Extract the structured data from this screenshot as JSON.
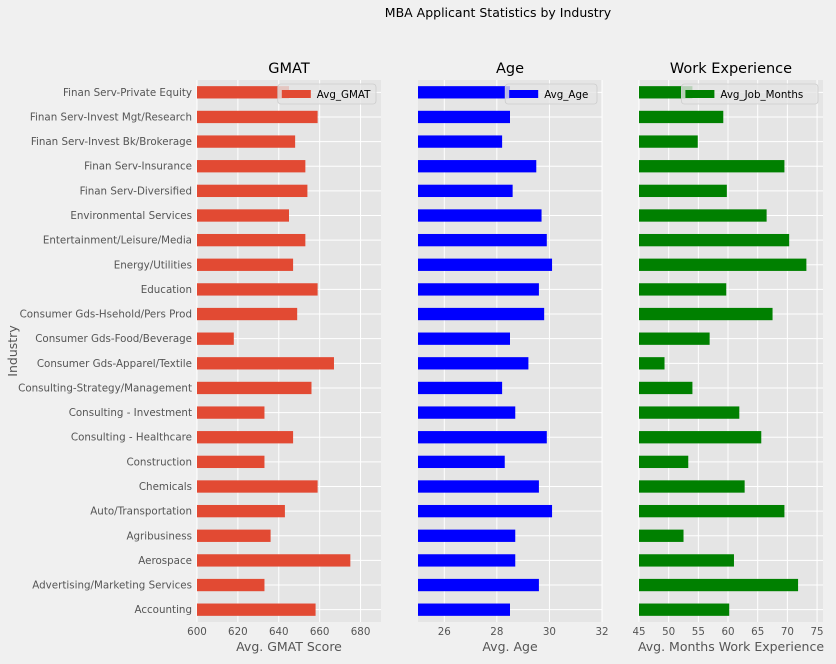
{
  "figure": {
    "suptitle": "MBA Applicant Statistics by Industry",
    "shared_ylabel": "Industry",
    "background": "#f0f0f0",
    "panel_background": "#e5e5e5",
    "grid_color": "#ffffff"
  },
  "categories": [
    "Accounting",
    "Advertising/Marketing Services",
    "Aerospace",
    "Agribusiness",
    "Auto/Transportation",
    "Chemicals",
    "Construction",
    "Consulting - Healthcare",
    "Consulting - Investment",
    "Consulting-Strategy/Management",
    "Consumer Gds-Apparel/Textile",
    "Consumer Gds-Food/Beverage",
    "Consumer Gds-Hsehold/Pers Prod",
    "Education",
    "Energy/Utilities",
    "Entertainment/Leisure/Media",
    "Environmental Services",
    "Finan Serv-Diversified",
    "Finan Serv-Insurance",
    "Finan Serv-Invest Bk/Brokerage",
    "Finan Serv-Invest Mgt/Research",
    "Finan Serv-Private Equity"
  ],
  "chart_data": [
    {
      "type": "bar",
      "orientation": "horizontal",
      "title": "GMAT",
      "xlabel": "Avg. GMAT Score",
      "ylabel": "Industry",
      "legend": "Avg_GMAT",
      "legend_position": "top-right",
      "color": "#e24a33",
      "xlim": [
        600,
        690
      ],
      "xticks": [
        "600",
        "620",
        "640",
        "660",
        "680"
      ],
      "values": [
        658,
        633,
        675,
        636,
        643,
        659,
        633,
        647,
        633,
        656,
        667,
        618,
        649,
        659,
        647,
        653,
        645,
        654,
        653,
        648,
        659,
        645
      ]
    },
    {
      "type": "bar",
      "orientation": "horizontal",
      "title": "Age",
      "xlabel": "Avg. Age",
      "ylabel": "",
      "legend": "Avg_Age",
      "legend_position": "top-right",
      "color": "#0000ff",
      "xlim": [
        25,
        32
      ],
      "xticks": [
        "26",
        "28",
        "30",
        "32"
      ],
      "values": [
        28.5,
        29.6,
        28.7,
        28.7,
        30.1,
        29.6,
        28.3,
        29.9,
        28.7,
        28.2,
        29.2,
        28.5,
        29.8,
        29.6,
        30.1,
        29.9,
        29.7,
        28.6,
        29.5,
        28.2,
        28.5,
        28.5
      ]
    },
    {
      "type": "bar",
      "orientation": "horizontal",
      "title": "Work Experience",
      "xlabel": "Avg. Months Work Experience",
      "ylabel": "",
      "legend": "Avg_Job_Months",
      "legend_position": "top-right",
      "color": "#008000",
      "xlim": [
        45,
        76
      ],
      "xticks": [
        "45",
        "50",
        "55",
        "60",
        "65",
        "70",
        "75"
      ],
      "values": [
        60.2,
        71.8,
        61.0,
        52.5,
        69.5,
        62.8,
        53.3,
        65.6,
        61.9,
        54.0,
        49.3,
        56.9,
        67.5,
        59.7,
        73.2,
        70.3,
        66.5,
        59.8,
        69.5,
        54.9,
        59.2,
        54.0
      ]
    }
  ]
}
